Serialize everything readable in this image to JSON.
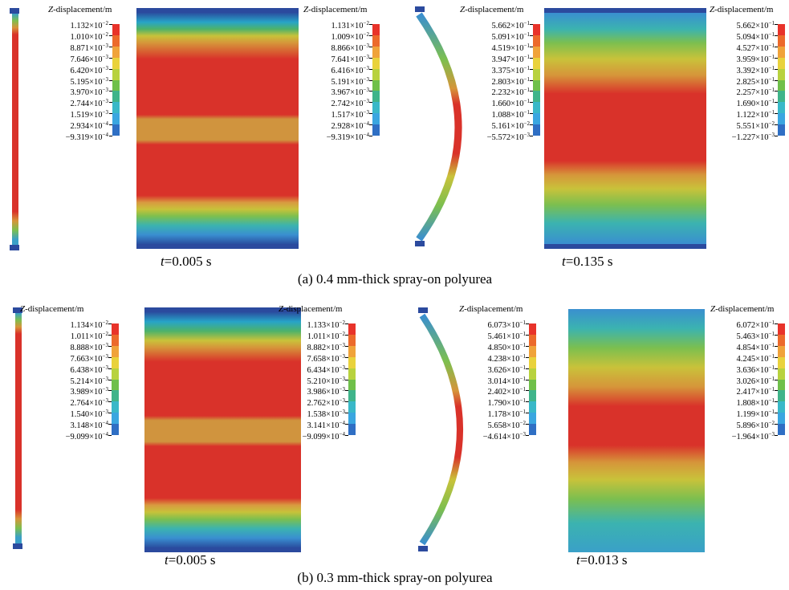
{
  "panels": [
    {
      "caption": "(a) 0.4 mm-thick spray-on polyurea",
      "times": [
        "t=0.005 s",
        "t=0.135 s"
      ],
      "legends": [
        {
          "title": "Z-displacement/m",
          "labels": [
            [
              "1.132×10",
              "−2"
            ],
            [
              "1.010×10",
              "−2"
            ],
            [
              "8.871×10",
              "−3"
            ],
            [
              "7.646×10",
              "−3"
            ],
            [
              "6.420×10",
              "−3"
            ],
            [
              "5.195×10",
              "−3"
            ],
            [
              "3.970×10",
              "−3"
            ],
            [
              "2.744×10",
              "−3"
            ],
            [
              "1.519×10",
              "−3"
            ],
            [
              "2.934×10",
              "−4"
            ],
            [
              "−9.319×10",
              "−4"
            ]
          ]
        },
        {
          "title": "Z-displacement/m",
          "labels": [
            [
              "1.131×10",
              "−2"
            ],
            [
              "1.009×10",
              "−2"
            ],
            [
              "8.866×10",
              "−3"
            ],
            [
              "7.641×10",
              "−3"
            ],
            [
              "6.416×10",
              "−3"
            ],
            [
              "5.191×10",
              "−3"
            ],
            [
              "3.967×10",
              "−3"
            ],
            [
              "2.742×10",
              "−3"
            ],
            [
              "1.517×10",
              "−3"
            ],
            [
              "2.928×10",
              "−4"
            ],
            [
              "−9.319×10",
              "−4"
            ]
          ]
        },
        {
          "title": "Z-displacement/m",
          "labels": [
            [
              "5.662×10",
              "−1"
            ],
            [
              "5.091×10",
              "−1"
            ],
            [
              "4.519×10",
              "−1"
            ],
            [
              "3.947×10",
              "−1"
            ],
            [
              "3.375×10",
              "−1"
            ],
            [
              "2.803×10",
              "−1"
            ],
            [
              "2.232×10",
              "−1"
            ],
            [
              "1.660×10",
              "−1"
            ],
            [
              "1.088×10",
              "−1"
            ],
            [
              "5.161×10",
              "−2"
            ],
            [
              "−5.572×10",
              "−3"
            ]
          ]
        },
        {
          "title": "Z-displacement/m",
          "labels": [
            [
              "5.662×10",
              "−1"
            ],
            [
              "5.094×10",
              "−1"
            ],
            [
              "4.527×10",
              "−1"
            ],
            [
              "3.959×10",
              "−1"
            ],
            [
              "3.392×10",
              "−1"
            ],
            [
              "2.825×10",
              "−1"
            ],
            [
              "2.257×10",
              "−1"
            ],
            [
              "1.690×10",
              "−1"
            ],
            [
              "1.122×10",
              "−1"
            ],
            [
              "5.551×10",
              "−2"
            ],
            [
              "−1.227×10",
              "−3"
            ]
          ]
        }
      ]
    },
    {
      "caption": "(b) 0.3 mm-thick spray-on polyurea",
      "times": [
        "t=0.005 s",
        "t=0.013 s"
      ],
      "legends": [
        {
          "title": "Z-displacement/m",
          "labels": [
            [
              "1.134×10",
              "−2"
            ],
            [
              "1.011×10",
              "−2"
            ],
            [
              "8.888×10",
              "−3"
            ],
            [
              "7.663×10",
              "−3"
            ],
            [
              "6.438×10",
              "−3"
            ],
            [
              "5.214×10",
              "−3"
            ],
            [
              "3.989×10",
              "−3"
            ],
            [
              "2.764×10",
              "−3"
            ],
            [
              "1.540×10",
              "−3"
            ],
            [
              "3.148×10",
              "−4"
            ],
            [
              "−9.099×10",
              "−4"
            ]
          ]
        },
        {
          "title": "Z-displacement/m",
          "labels": [
            [
              "1.133×10",
              "−2"
            ],
            [
              "1.011×10",
              "−2"
            ],
            [
              "8.882×10",
              "−3"
            ],
            [
              "7.658×10",
              "−3"
            ],
            [
              "6.434×10",
              "−3"
            ],
            [
              "5.210×10",
              "−3"
            ],
            [
              "3.986×10",
              "−3"
            ],
            [
              "2.762×10",
              "−3"
            ],
            [
              "1.538×10",
              "−3"
            ],
            [
              "3.141×10",
              "−4"
            ],
            [
              "−9.099×10",
              "−4"
            ]
          ]
        },
        {
          "title": "Z-displacement/m",
          "labels": [
            [
              "6.073×10",
              "−1"
            ],
            [
              "5.461×10",
              "−1"
            ],
            [
              "4.850×10",
              "−1"
            ],
            [
              "4.238×10",
              "−1"
            ],
            [
              "3.626×10",
              "−1"
            ],
            [
              "3.014×10",
              "−1"
            ],
            [
              "2.402×10",
              "−1"
            ],
            [
              "1.790×10",
              "−1"
            ],
            [
              "1.178×10",
              "−1"
            ],
            [
              "5.658×10",
              "−2"
            ],
            [
              "−4.614×10",
              "−3"
            ]
          ]
        },
        {
          "title": "Z-displacement/m",
          "labels": [
            [
              "6.072×10",
              "−1"
            ],
            [
              "5.463×10",
              "−1"
            ],
            [
              "4.854×10",
              "−1"
            ],
            [
              "4.245×10",
              "−1"
            ],
            [
              "3.636×10",
              "−1"
            ],
            [
              "3.026×10",
              "−1"
            ],
            [
              "2.417×10",
              "−1"
            ],
            [
              "1.808×10",
              "−1"
            ],
            [
              "1.199×10",
              "−1"
            ],
            [
              "5.896×10",
              "−2"
            ],
            [
              "−1.964×10",
              "−3"
            ]
          ]
        }
      ]
    }
  ]
}
